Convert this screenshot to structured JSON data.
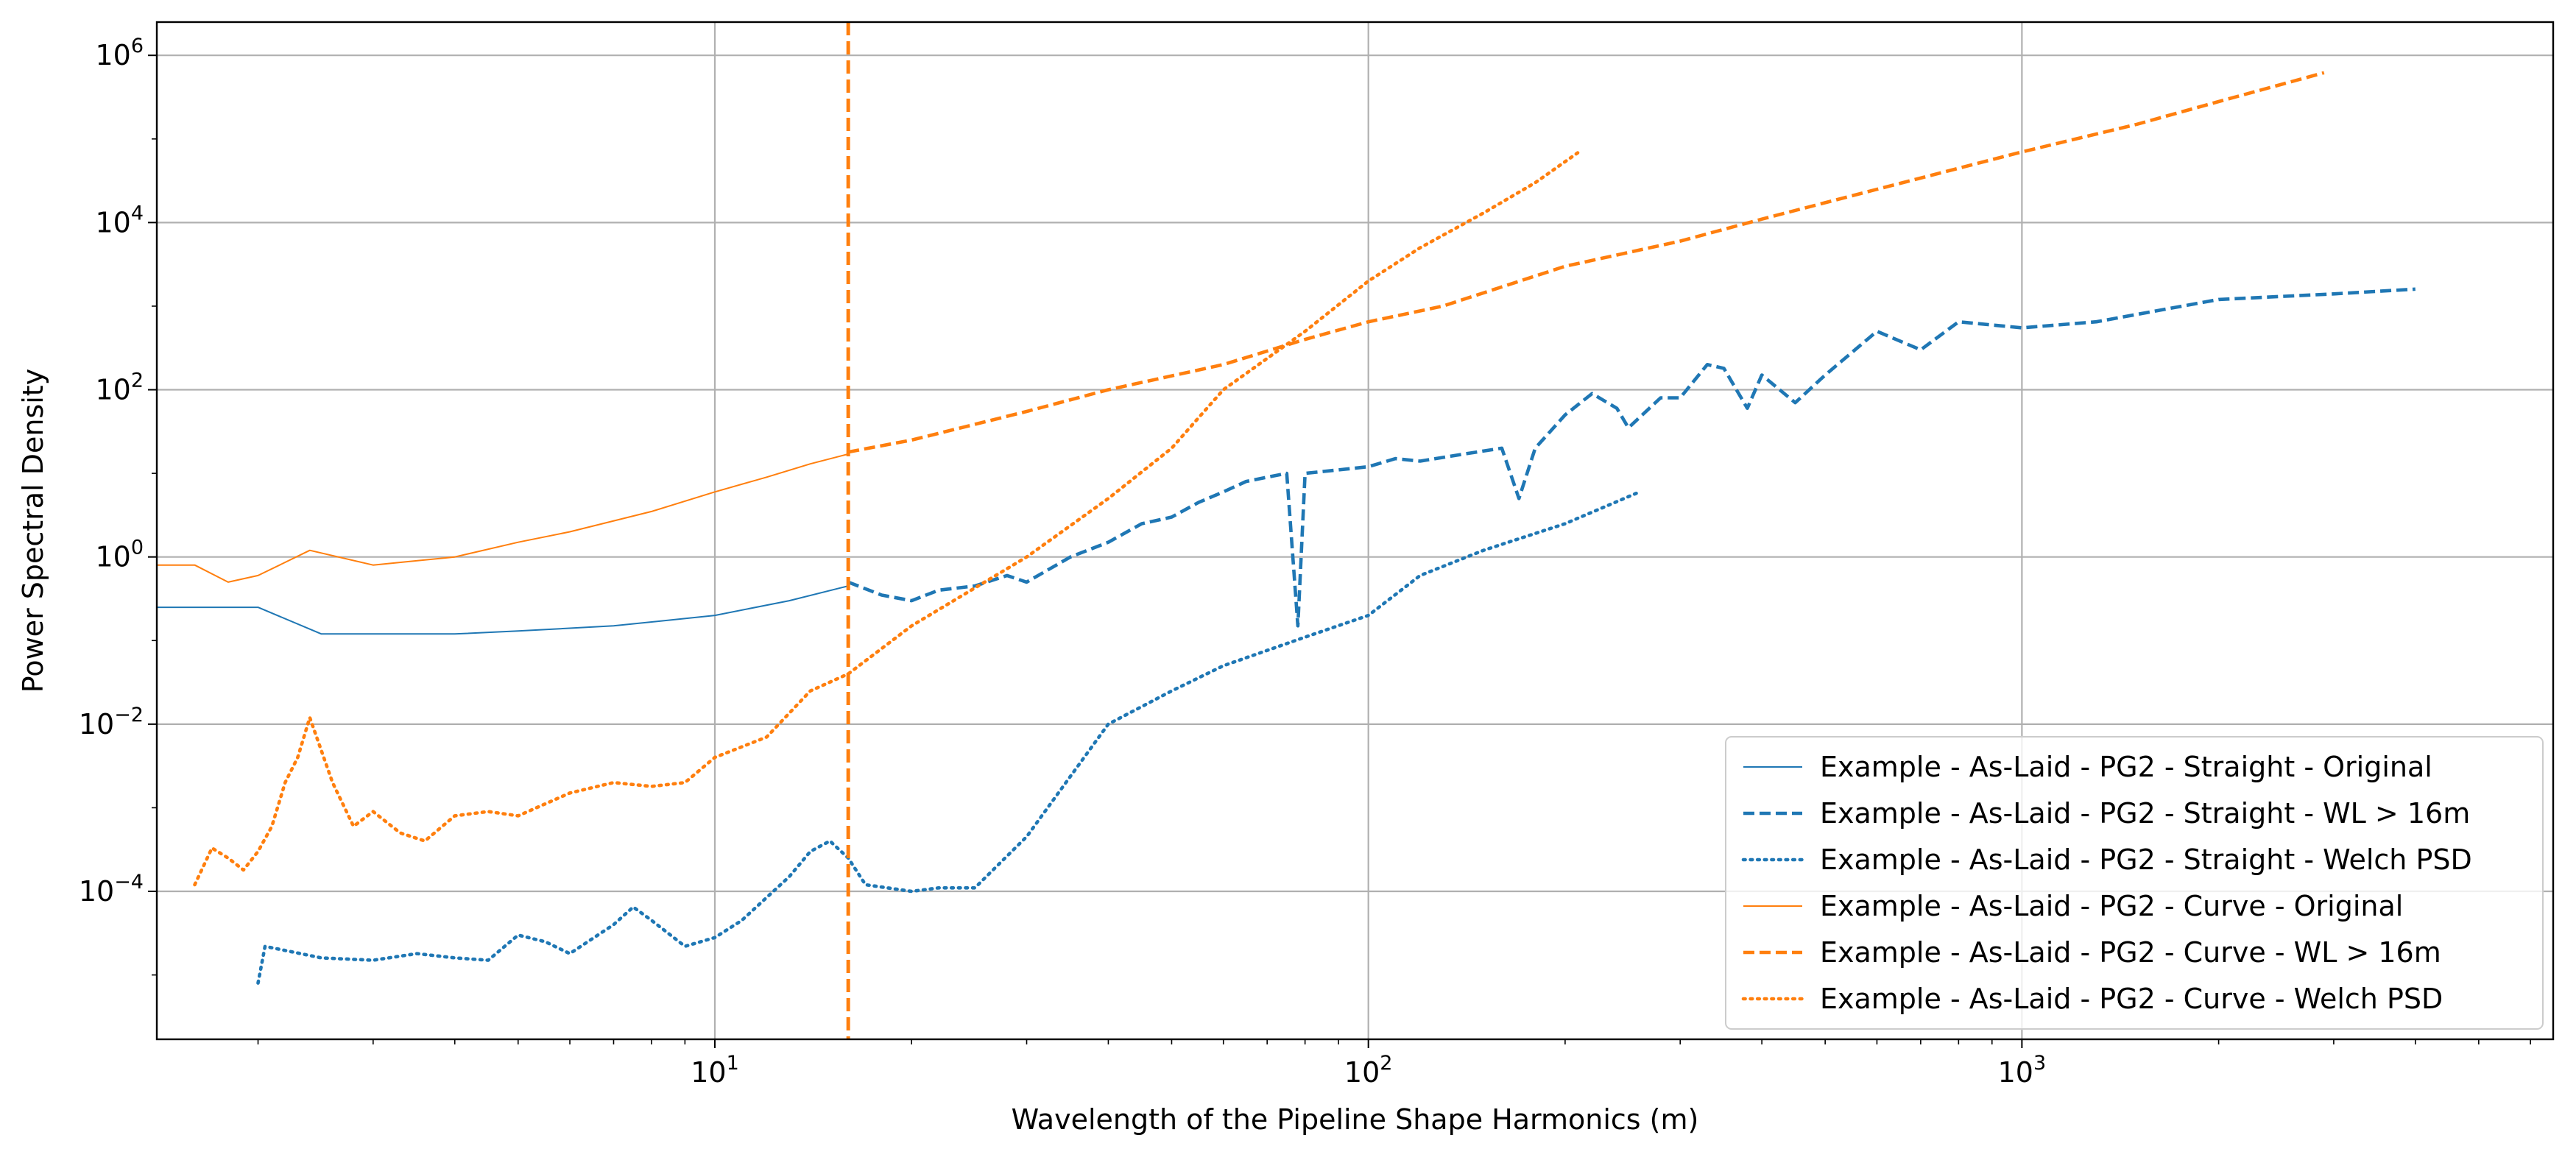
{
  "chart_data": {
    "type": "line",
    "title": "",
    "xlabel": "Wavelength of the Pipeline Shape Harmonics (m)",
    "ylabel": "Power Spectral Density",
    "x_scale": "log",
    "y_scale": "log",
    "xlim": [
      1.4,
      6500
    ],
    "ylim": [
      1.7e-06,
      2500000
    ],
    "grid": true,
    "legend_location": "lower right",
    "x_ticks": [
      {
        "base": "10",
        "exp": "1",
        "value": 10
      },
      {
        "base": "10",
        "exp": "2",
        "value": 100
      },
      {
        "base": "10",
        "exp": "3",
        "value": 1000
      }
    ],
    "y_ticks": [
      {
        "base": "10",
        "exp": "6",
        "value": 1000000
      },
      {
        "base": "10",
        "exp": "4",
        "value": 10000
      },
      {
        "base": "10",
        "exp": "2",
        "value": 100
      },
      {
        "base": "10",
        "exp": "0",
        "value": 1
      },
      {
        "base": "10",
        "exp": "−2",
        "value": 0.01
      },
      {
        "base": "10",
        "exp": "−4",
        "value": 0.0001
      }
    ],
    "vline": {
      "x": 16,
      "color": "#ff7f0e",
      "style": "dashed"
    },
    "series": [
      {
        "name": "Example - As-Laid - PG2 - Straight - Original",
        "color": "#1f77b4",
        "style": "solid",
        "points": [
          [
            1.4,
            0.25
          ],
          [
            2,
            0.25
          ],
          [
            2.5,
            0.12
          ],
          [
            3,
            0.12
          ],
          [
            4,
            0.12
          ],
          [
            5,
            0.13
          ],
          [
            7,
            0.15
          ],
          [
            10,
            0.2
          ],
          [
            13,
            0.3
          ],
          [
            16,
            0.45
          ]
        ]
      },
      {
        "name": "Example - As-Laid - PG2 - Straight - WL > 16m",
        "color": "#1f77b4",
        "style": "dashed",
        "points": [
          [
            16,
            0.5
          ],
          [
            18,
            0.35
          ],
          [
            20,
            0.3
          ],
          [
            22,
            0.4
          ],
          [
            25,
            0.45
          ],
          [
            28,
            0.6
          ],
          [
            30,
            0.5
          ],
          [
            35,
            1.0
          ],
          [
            40,
            1.5
          ],
          [
            45,
            2.5
          ],
          [
            50,
            3.0
          ],
          [
            55,
            4.5
          ],
          [
            60,
            6.0
          ],
          [
            65,
            8.0
          ],
          [
            70,
            9.0
          ],
          [
            75,
            10.0
          ],
          [
            78,
            0.15
          ],
          [
            80,
            10.0
          ],
          [
            90,
            11.0
          ],
          [
            100,
            12.0
          ],
          [
            110,
            15.0
          ],
          [
            120,
            14.0
          ],
          [
            140,
            17.0
          ],
          [
            160,
            20.0
          ],
          [
            170,
            5.0
          ],
          [
            180,
            20.0
          ],
          [
            200,
            50.0
          ],
          [
            220,
            90.0
          ],
          [
            240,
            60.0
          ],
          [
            250,
            35.0
          ],
          [
            280,
            80.0
          ],
          [
            300,
            80.0
          ],
          [
            330,
            200.0
          ],
          [
            350,
            180.0
          ],
          [
            380,
            60.0
          ],
          [
            400,
            150.0
          ],
          [
            450,
            70.0
          ],
          [
            500,
            150.0
          ],
          [
            600,
            500.0
          ],
          [
            700,
            300.0
          ],
          [
            800,
            650.0
          ],
          [
            1000,
            550.0
          ],
          [
            1300,
            650.0
          ],
          [
            2000,
            1200.0
          ],
          [
            3000,
            1400.0
          ],
          [
            4000,
            1600.0
          ]
        ]
      },
      {
        "name": "Example - As-Laid - PG2 - Straight - Welch PSD",
        "color": "#1f77b4",
        "style": "dotted",
        "points": [
          [
            2,
            8e-06
          ],
          [
            2.05,
            2.2e-05
          ],
          [
            2.5,
            1.6e-05
          ],
          [
            3,
            1.5e-05
          ],
          [
            3.5,
            1.8e-05
          ],
          [
            4,
            1.6e-05
          ],
          [
            4.5,
            1.5e-05
          ],
          [
            5,
            3e-05
          ],
          [
            5.5,
            2.5e-05
          ],
          [
            6,
            1.8e-05
          ],
          [
            7,
            4e-05
          ],
          [
            7.5,
            6.5e-05
          ],
          [
            8,
            4.5e-05
          ],
          [
            9,
            2.2e-05
          ],
          [
            10,
            2.8e-05
          ],
          [
            11,
            4.5e-05
          ],
          [
            13,
            0.00015
          ],
          [
            14,
            0.0003
          ],
          [
            15,
            0.0004
          ],
          [
            16,
            0.00025
          ],
          [
            17,
            0.00012
          ],
          [
            20,
            0.0001
          ],
          [
            22,
            0.00011
          ],
          [
            25,
            0.00011
          ],
          [
            30,
            0.00045
          ],
          [
            40,
            0.01
          ],
          [
            50,
            0.025
          ],
          [
            60,
            0.05
          ],
          [
            80,
            0.11
          ],
          [
            100,
            0.2
          ],
          [
            120,
            0.6
          ],
          [
            150,
            1.2
          ],
          [
            200,
            2.5
          ],
          [
            260,
            6.0
          ]
        ]
      },
      {
        "name": "Example - As-Laid - PG2 - Curve - Original",
        "color": "#ff7f0e",
        "style": "solid",
        "points": [
          [
            1.4,
            0.8
          ],
          [
            1.6,
            0.8
          ],
          [
            1.8,
            0.5
          ],
          [
            2,
            0.6
          ],
          [
            2.4,
            1.2
          ],
          [
            3,
            0.8
          ],
          [
            4,
            1.0
          ],
          [
            5,
            1.5
          ],
          [
            6,
            2.0
          ],
          [
            8,
            3.5
          ],
          [
            10,
            6.0
          ],
          [
            12,
            9.0
          ],
          [
            14,
            13.0
          ],
          [
            16,
            17.0
          ]
        ]
      },
      {
        "name": "Example - As-Laid - PG2 - Curve - WL > 16m",
        "color": "#ff7f0e",
        "style": "dashed",
        "points": [
          [
            16,
            18.0
          ],
          [
            20,
            25.0
          ],
          [
            30,
            55.0
          ],
          [
            40,
            100.0
          ],
          [
            60,
            200.0
          ],
          [
            80,
            400.0
          ],
          [
            100,
            650.0
          ],
          [
            130,
            1000.0
          ],
          [
            200,
            3000.0
          ],
          [
            300,
            6000.0
          ],
          [
            400,
            11000.0
          ],
          [
            600,
            25000.0
          ],
          [
            1000,
            70000.0
          ],
          [
            1500,
            150000.0
          ],
          [
            2000,
            280000.0
          ],
          [
            2900,
            620000.0
          ]
        ]
      },
      {
        "name": "Example - As-Laid - PG2 - Curve - Welch PSD",
        "color": "#ff7f0e",
        "style": "dotted",
        "points": [
          [
            1.6,
            0.00012
          ],
          [
            1.7,
            0.00033
          ],
          [
            1.8,
            0.00025
          ],
          [
            1.9,
            0.00018
          ],
          [
            2,
            0.0003
          ],
          [
            2.1,
            0.0006
          ],
          [
            2.2,
            0.002
          ],
          [
            2.3,
            0.004
          ],
          [
            2.4,
            0.012
          ],
          [
            2.6,
            0.002
          ],
          [
            2.8,
            0.0006
          ],
          [
            3,
            0.0009
          ],
          [
            3.3,
            0.0005
          ],
          [
            3.6,
            0.0004
          ],
          [
            4,
            0.0008
          ],
          [
            4.5,
            0.0009
          ],
          [
            5,
            0.0008
          ],
          [
            6,
            0.0015
          ],
          [
            7,
            0.002
          ],
          [
            8,
            0.0018
          ],
          [
            9,
            0.002
          ],
          [
            10,
            0.004
          ],
          [
            12,
            0.007
          ],
          [
            14,
            0.025
          ],
          [
            16,
            0.04
          ],
          [
            20,
            0.15
          ],
          [
            30,
            1.0
          ],
          [
            40,
            5.0
          ],
          [
            50,
            20.0
          ],
          [
            60,
            100.0
          ],
          [
            80,
            500.0
          ],
          [
            100,
            2000.0
          ],
          [
            120,
            5000.0
          ],
          [
            150,
            13000.0
          ],
          [
            180,
            30000.0
          ],
          [
            210,
            70000.0
          ]
        ]
      }
    ]
  }
}
